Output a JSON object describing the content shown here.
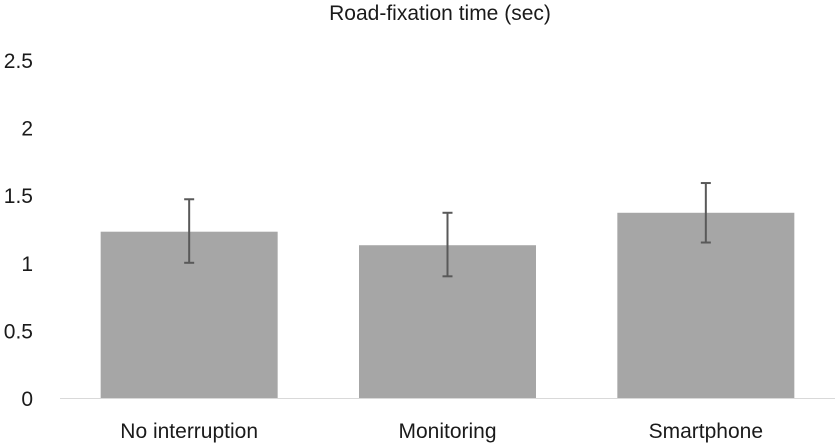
{
  "chart_data": {
    "type": "bar",
    "title": "Road-fixation time (sec)",
    "xlabel": "",
    "ylabel": "",
    "categories": [
      "No interruption",
      "Monitoring",
      "Smartphone"
    ],
    "values": [
      1.23,
      1.13,
      1.37
    ],
    "error_low": [
      1.0,
      0.9,
      1.15
    ],
    "error_high": [
      1.47,
      1.37,
      1.59
    ],
    "ylim": [
      0,
      2.5
    ],
    "yticks": [
      "0",
      "0.5",
      "1",
      "1.5",
      "2",
      "2.5"
    ],
    "grid": false,
    "legend": "none",
    "bar_color": "#a6a6a6",
    "error_bar_color": "#595959",
    "axis_color": "#d9d9d9"
  }
}
